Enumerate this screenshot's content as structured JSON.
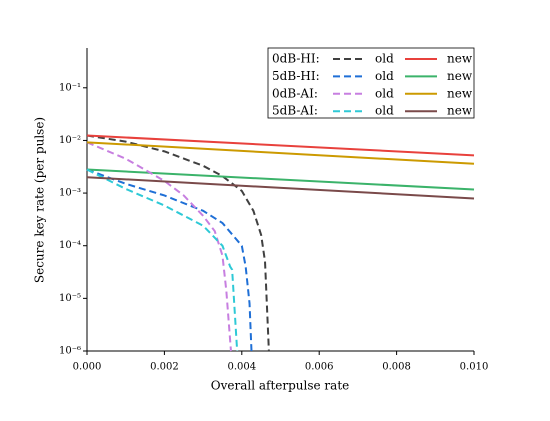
{
  "chart_data": {
    "type": "line",
    "x_label": "Overall afterpulse rate",
    "y_label": "Secure key rate (per pulse)",
    "xlim": [
      0,
      0.01
    ],
    "xticks": [
      {
        "value": 0,
        "label": "0.000"
      },
      {
        "value": 0.002,
        "label": "0.002"
      },
      {
        "value": 0.004,
        "label": "0.004"
      },
      {
        "value": 0.006,
        "label": "0.006"
      },
      {
        "value": 0.008,
        "label": "0.008"
      },
      {
        "value": 0.01,
        "label": "0.010"
      }
    ],
    "ylim": [
      1e-06,
      0.57
    ],
    "y_scale": "log",
    "yticks": [
      {
        "value": 1e-06,
        "label": "10⁻⁶"
      },
      {
        "value": 1e-05,
        "label": "10⁻⁵"
      },
      {
        "value": 0.0001,
        "label": "10⁻⁴"
      },
      {
        "value": 0.001,
        "label": "10⁻³"
      },
      {
        "value": 0.01,
        "label": "10⁻²"
      },
      {
        "value": 0.1,
        "label": "10⁻¹"
      }
    ],
    "legend_position": "upper right",
    "legend_labels": [
      "0dB-HI:",
      "5dB-HI:",
      "0dB-AI:",
      "5dB-AI:"
    ],
    "series": [
      {
        "name": "old",
        "color": "#404040",
        "dashed": true,
        "x": [
          0,
          0.001,
          0.002,
          0.003,
          0.0035,
          0.004,
          0.0043,
          0.0045,
          0.0046,
          0.0047
        ],
        "values": [
          0.0124,
          0.0095,
          0.0062,
          0.0033,
          0.0021,
          0.0011,
          0.00046,
          0.00016,
          5e-05,
          1e-06
        ]
      },
      {
        "name": "new",
        "color": "#e8413c",
        "dashed": false,
        "x": [
          0,
          0.01
        ],
        "values": [
          0.0124,
          0.0052
        ]
      },
      {
        "name": "old",
        "color": "#1f6fd6",
        "dashed": true,
        "x": [
          0,
          0.001,
          0.002,
          0.003,
          0.0035,
          0.004,
          0.0041,
          0.0042,
          0.00425
        ],
        "values": [
          0.0028,
          0.0015,
          0.0009,
          0.00046,
          0.00027,
          0.0001,
          4e-05,
          8e-06,
          1e-06
        ]
      },
      {
        "name": "new",
        "color": "#3bb36a",
        "dashed": false,
        "x": [
          0,
          0.01
        ],
        "values": [
          0.0028,
          0.00117
        ]
      },
      {
        "name": "old",
        "color": "#c77fe0",
        "dashed": true,
        "x": [
          0,
          0.001,
          0.002,
          0.0025,
          0.003,
          0.0033,
          0.0035,
          0.0036,
          0.00372
        ],
        "values": [
          0.0092,
          0.0045,
          0.0017,
          0.0009,
          0.00037,
          0.00019,
          6.5e-05,
          1.4e-05,
          1e-06
        ]
      },
      {
        "name": "new",
        "color": "#cc9a00",
        "dashed": false,
        "x": [
          0,
          0.01
        ],
        "values": [
          0.0092,
          0.0036
        ]
      },
      {
        "name": "old",
        "color": "#2ec9d6",
        "dashed": true,
        "x": [
          0,
          0.001,
          0.002,
          0.003,
          0.0035,
          0.0037,
          0.00375,
          0.00388
        ],
        "values": [
          0.0028,
          0.0012,
          0.00058,
          0.00024,
          0.0001,
          4e-05,
          3.5e-05,
          1e-06
        ]
      },
      {
        "name": "new",
        "color": "#7a4a4a",
        "dashed": false,
        "x": [
          0,
          0.01
        ],
        "values": [
          0.002,
          0.00079
        ]
      }
    ]
  }
}
